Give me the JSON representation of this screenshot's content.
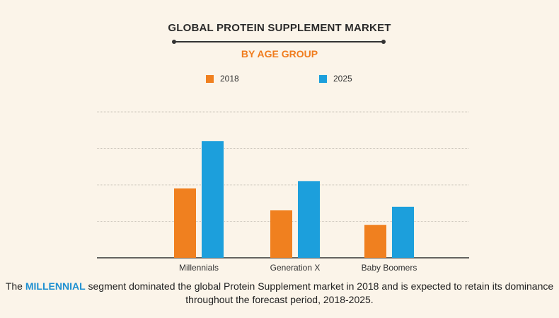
{
  "title": "GLOBAL PROTEIN SUPPLEMENT MARKET",
  "subtitle": "BY AGE GROUP",
  "colors": {
    "2018": "#f0801f",
    "2025": "#1c9fdc"
  },
  "chart_data": {
    "type": "bar",
    "title": "GLOBAL PROTEIN SUPPLEMENT MARKET",
    "subtitle": "BY AGE GROUP",
    "categories": [
      "Millennials",
      "Generation X",
      "Baby Boomers"
    ],
    "series": [
      {
        "name": "2018",
        "values": [
          1.9,
          1.3,
          0.9
        ]
      },
      {
        "name": "2025",
        "values": [
          3.2,
          2.1,
          1.4
        ]
      }
    ],
    "ylim": [
      0,
      4
    ],
    "grid": true,
    "legend": "top"
  },
  "caption": {
    "before": "The ",
    "highlight": "MILLENNIAL",
    "after": " segment dominated the global Protein Supplement market in 2018 and is expected to retain its dominance throughout the forecast period, 2018-2025."
  }
}
